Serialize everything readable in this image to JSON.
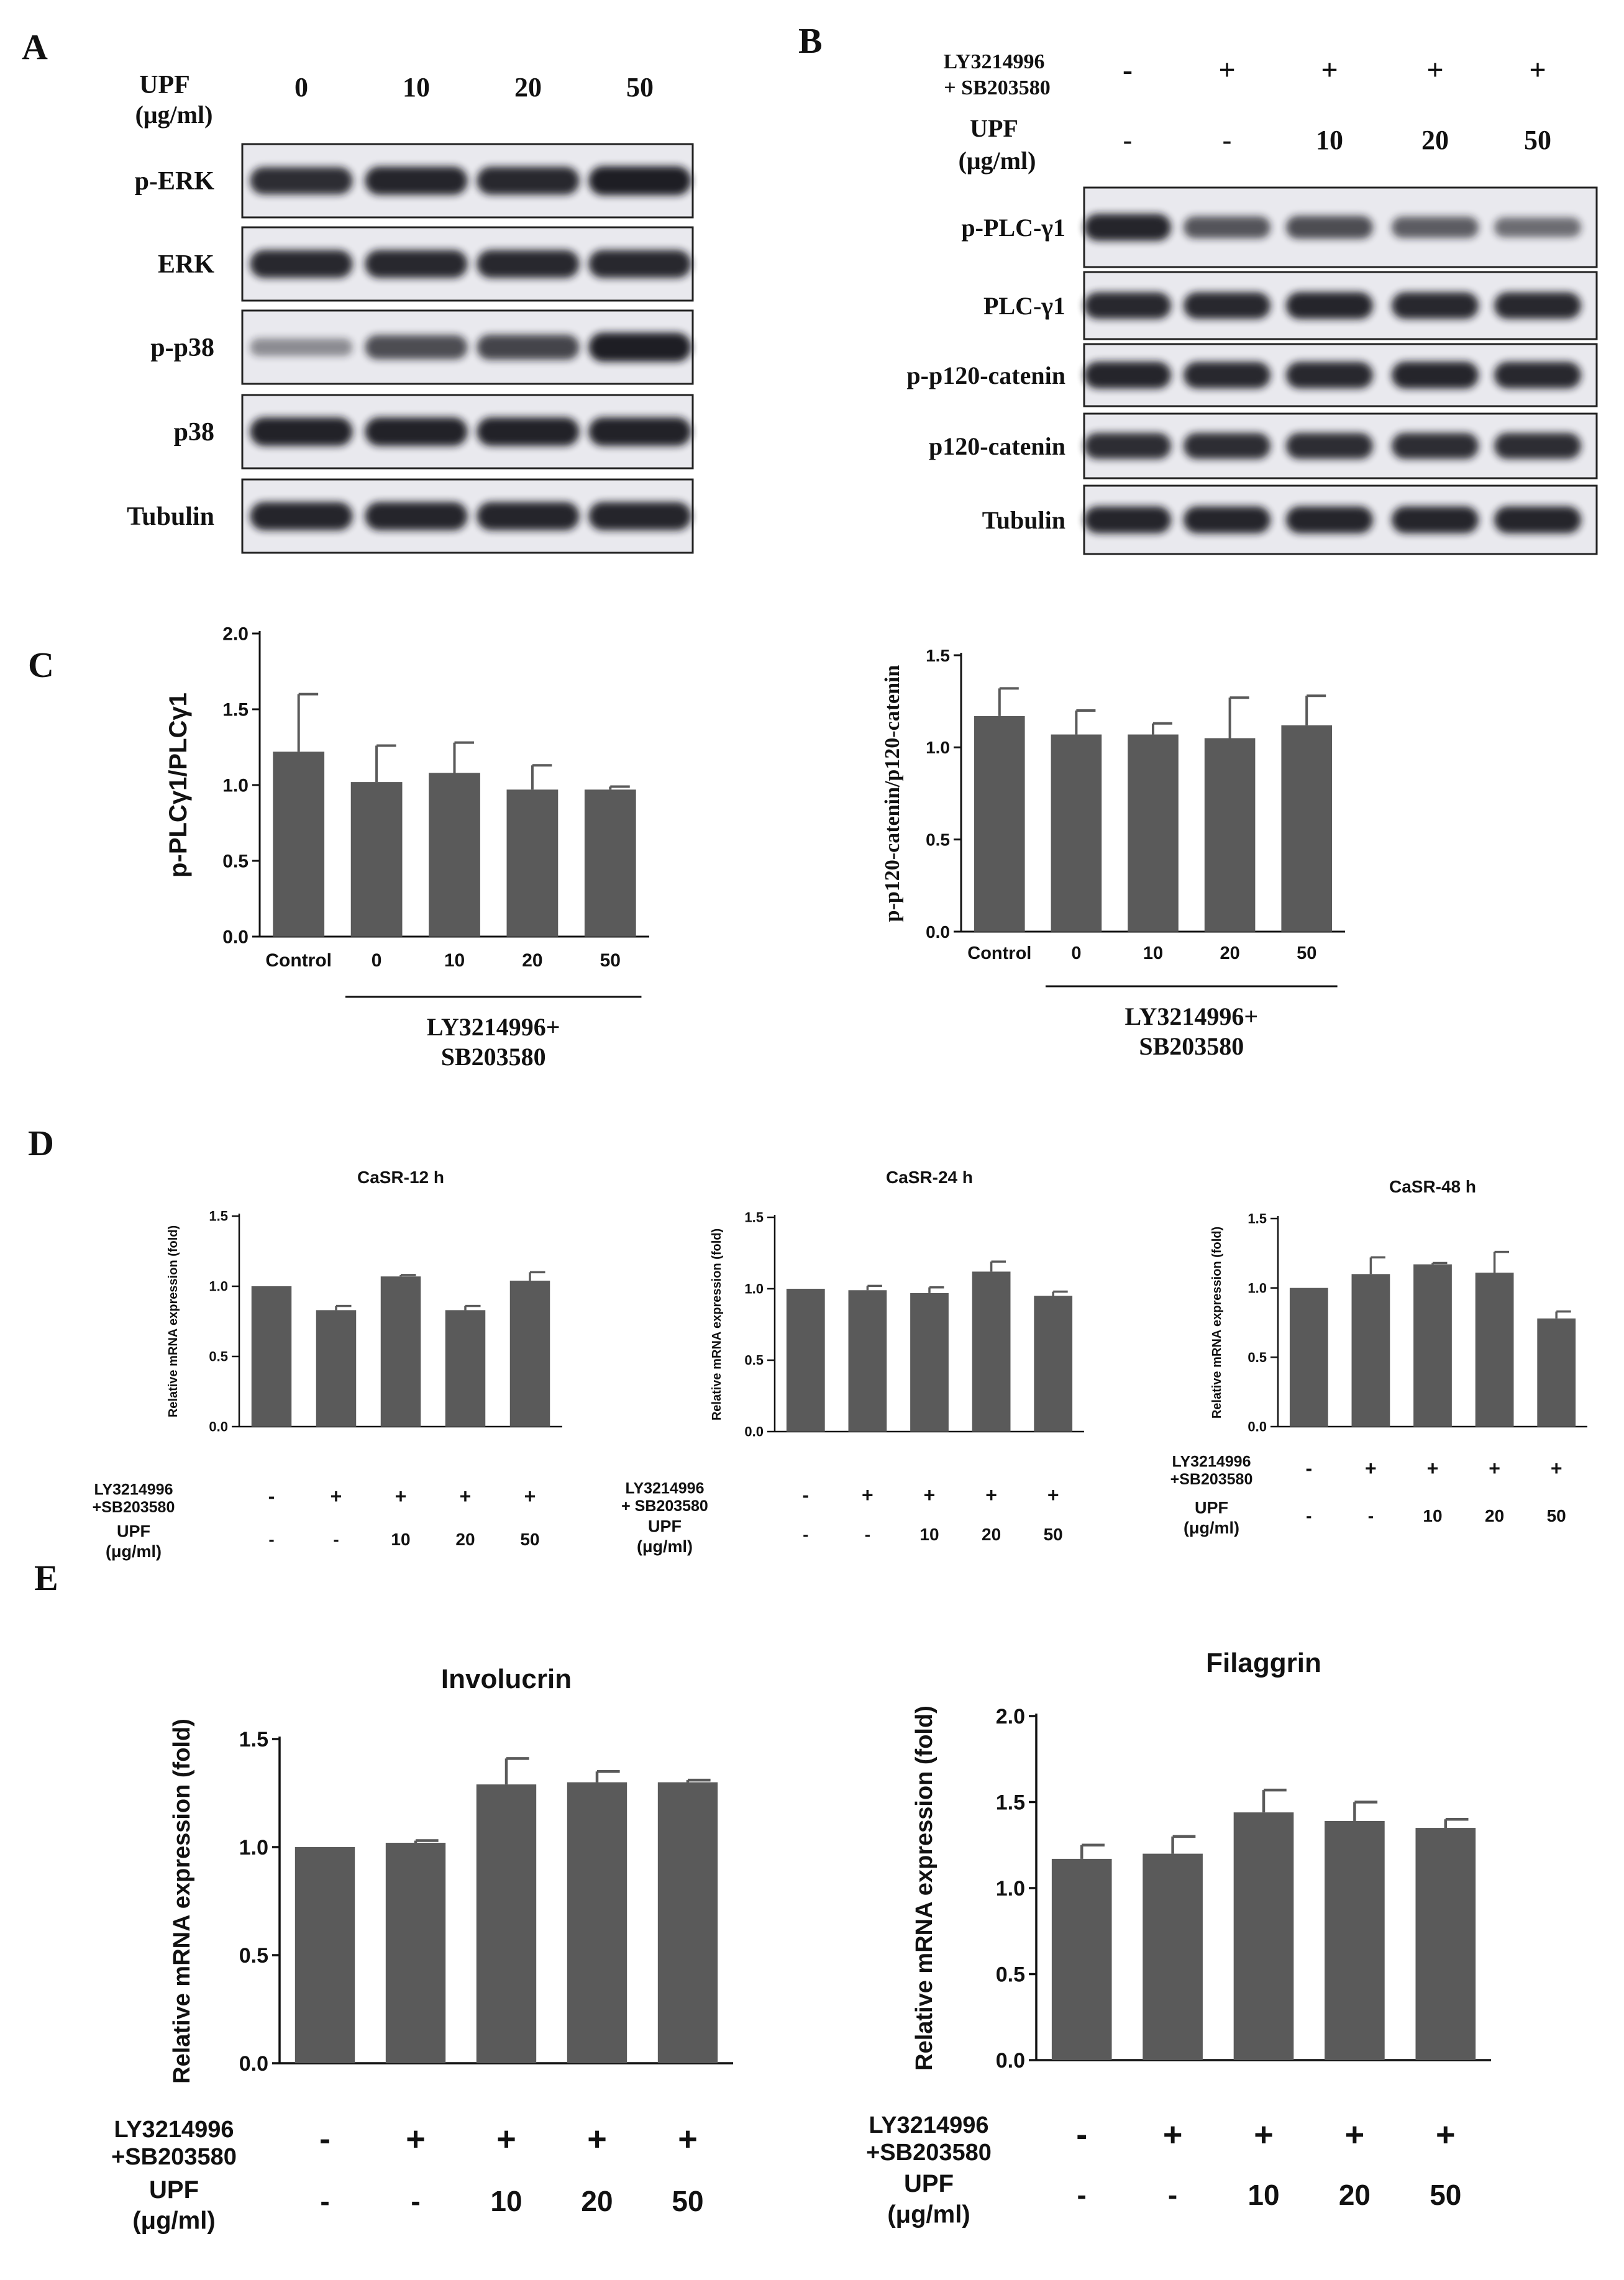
{
  "panel_letters": [
    "A",
    "B",
    "C",
    "D",
    "E"
  ],
  "blot_A": {
    "header_label": "UPF",
    "header_unit": "(μg/ml)",
    "lanes": [
      "0",
      "10",
      "20",
      "50"
    ],
    "rows": [
      {
        "label": "p-ERK",
        "intensity": [
          0.85,
          0.9,
          0.88,
          0.95
        ]
      },
      {
        "label": "ERK",
        "intensity": [
          0.88,
          0.88,
          0.88,
          0.88
        ]
      },
      {
        "label": "p-p38",
        "intensity": [
          0.25,
          0.65,
          0.7,
          0.95
        ]
      },
      {
        "label": "p38",
        "intensity": [
          0.92,
          0.92,
          0.92,
          0.92
        ]
      },
      {
        "label": "Tubulin",
        "intensity": [
          0.9,
          0.9,
          0.9,
          0.9
        ]
      }
    ]
  },
  "blot_B": {
    "treat_label1": "LY3214996",
    "treat_label2": "+ SB203580",
    "treat_values": [
      "-",
      "+",
      "+",
      "+",
      "+"
    ],
    "upf_label": "UPF",
    "upf_unit": "(μg/ml)",
    "upf_values": [
      "-",
      "-",
      "10",
      "20",
      "50"
    ],
    "rows": [
      {
        "label": "p-PLC-γ1",
        "intensity": [
          0.9,
          0.6,
          0.65,
          0.55,
          0.45
        ]
      },
      {
        "label": "PLC-γ1",
        "intensity": [
          0.88,
          0.88,
          0.9,
          0.88,
          0.88
        ]
      },
      {
        "label": "p-p120-catenin",
        "intensity": [
          0.9,
          0.88,
          0.88,
          0.9,
          0.88
        ]
      },
      {
        "label": "p120-catenin",
        "intensity": [
          0.85,
          0.85,
          0.85,
          0.85,
          0.85
        ]
      },
      {
        "label": "Tubulin",
        "intensity": [
          0.9,
          0.9,
          0.9,
          0.9,
          0.9
        ]
      }
    ]
  },
  "chart_data": [
    {
      "panel": "C-left",
      "type": "bar",
      "categories": [
        "Control",
        "0",
        "10",
        "20",
        "50"
      ],
      "values": [
        1.22,
        1.02,
        1.08,
        0.97,
        0.97
      ],
      "errors": [
        0.38,
        0.24,
        0.2,
        0.16,
        0.02
      ],
      "ylabel": "p-PLCγ1/PLCγ1",
      "ylim": [
        0,
        2.0
      ],
      "yticks": [
        "0.0",
        "0.5",
        "1.0",
        "1.5",
        "2.0"
      ],
      "group_label": [
        "LY3214996+",
        "SB203580"
      ]
    },
    {
      "panel": "C-right",
      "type": "bar",
      "categories": [
        "Control",
        "0",
        "10",
        "20",
        "50"
      ],
      "values": [
        1.17,
        1.07,
        1.07,
        1.05,
        1.12
      ],
      "errors": [
        0.15,
        0.13,
        0.06,
        0.22,
        0.16
      ],
      "ylabel": "p-p120-catenin/p120-catenin",
      "ylim": [
        0,
        1.5
      ],
      "yticks": [
        "0.0",
        "0.5",
        "1.0",
        "1.5"
      ],
      "group_label": [
        "LY3214996+",
        "SB203580"
      ]
    },
    {
      "panel": "D-12h",
      "type": "bar",
      "title": "CaSR-12 h",
      "values": [
        1.0,
        0.83,
        1.07,
        0.83,
        1.04
      ],
      "errors": [
        0.0,
        0.03,
        0.01,
        0.03,
        0.06
      ],
      "ylabel": "Relative mRNA expression (fold)",
      "ylim": [
        0,
        1.5
      ],
      "yticks": [
        "0.0",
        "0.5",
        "1.0",
        "1.5"
      ],
      "treat_label": [
        "LY3214996",
        "+SB203580"
      ],
      "treat_values": [
        "-",
        "+",
        "+",
        "+",
        "+"
      ],
      "upf_label": [
        "UPF",
        "(μg/ml)"
      ],
      "upf_values": [
        "-",
        "-",
        "10",
        "20",
        "50"
      ]
    },
    {
      "panel": "D-24h",
      "type": "bar",
      "title": "CaSR-24 h",
      "values": [
        1.0,
        0.99,
        0.97,
        1.12,
        0.95
      ],
      "errors": [
        0.0,
        0.03,
        0.04,
        0.07,
        0.03
      ],
      "ylabel": "Relative mRNA expression (fold)",
      "ylim": [
        0,
        1.5
      ],
      "yticks": [
        "0.0",
        "0.5",
        "1.0",
        "1.5"
      ],
      "treat_label": [
        "LY3214996",
        "+ SB203580"
      ],
      "treat_values": [
        "-",
        "+",
        "+",
        "+",
        "+"
      ],
      "upf_label": [
        "UPF",
        "(μg/ml)"
      ],
      "upf_values": [
        "-",
        "-",
        "10",
        "20",
        "50"
      ]
    },
    {
      "panel": "D-48h",
      "type": "bar",
      "title": "CaSR-48 h",
      "values": [
        1.0,
        1.1,
        1.17,
        1.11,
        0.78
      ],
      "errors": [
        0.0,
        0.12,
        0.01,
        0.15,
        0.05
      ],
      "ylabel": "Relative mRNA expression (fold)",
      "ylim": [
        0,
        1.5
      ],
      "yticks": [
        "0.0",
        "0.5",
        "1.0",
        "1.5"
      ],
      "treat_label": [
        "LY3214996",
        "+SB203580"
      ],
      "treat_values": [
        "-",
        "+",
        "+",
        "+",
        "+"
      ],
      "upf_label": [
        "UPF",
        "(μg/ml)"
      ],
      "upf_values": [
        "-",
        "-",
        "10",
        "20",
        "50"
      ]
    },
    {
      "panel": "E-involucrin",
      "type": "bar",
      "title": "Involucrin",
      "values": [
        1.0,
        1.02,
        1.29,
        1.3,
        1.3
      ],
      "errors": [
        0.0,
        0.01,
        0.12,
        0.05,
        0.01
      ],
      "ylabel": "Relative mRNA expression (fold)",
      "ylim": [
        0,
        1.5
      ],
      "yticks": [
        "0.0",
        "0.5",
        "1.0",
        "1.5"
      ],
      "treat_label": [
        "LY3214996",
        "+SB203580"
      ],
      "treat_values": [
        "-",
        "+",
        "+",
        "+",
        "+"
      ],
      "upf_label": [
        "UPF",
        "(μg/ml)"
      ],
      "upf_values": [
        "-",
        "-",
        "10",
        "20",
        "50"
      ]
    },
    {
      "panel": "E-filaggrin",
      "type": "bar",
      "title": "Filaggrin",
      "values": [
        1.17,
        1.2,
        1.44,
        1.39,
        1.35
      ],
      "errors": [
        0.08,
        0.1,
        0.13,
        0.11,
        0.05
      ],
      "ylabel": "Relative mRNA expression (fold)",
      "ylim": [
        0,
        2.0
      ],
      "yticks": [
        "0.0",
        "0.5",
        "1.0",
        "1.5",
        "2.0"
      ],
      "treat_label": [
        "LY3214996",
        "+SB203580"
      ],
      "treat_values": [
        "-",
        "+",
        "+",
        "+",
        "+"
      ],
      "upf_label": [
        "UPF",
        "(μg/ml)"
      ],
      "upf_values": [
        "-",
        "-",
        "10",
        "20",
        "50"
      ]
    }
  ],
  "colors": {
    "bar": "#5a5a5a",
    "axis": "#111111",
    "blot_bg": "#e9e9ee",
    "band": "#15151f"
  }
}
